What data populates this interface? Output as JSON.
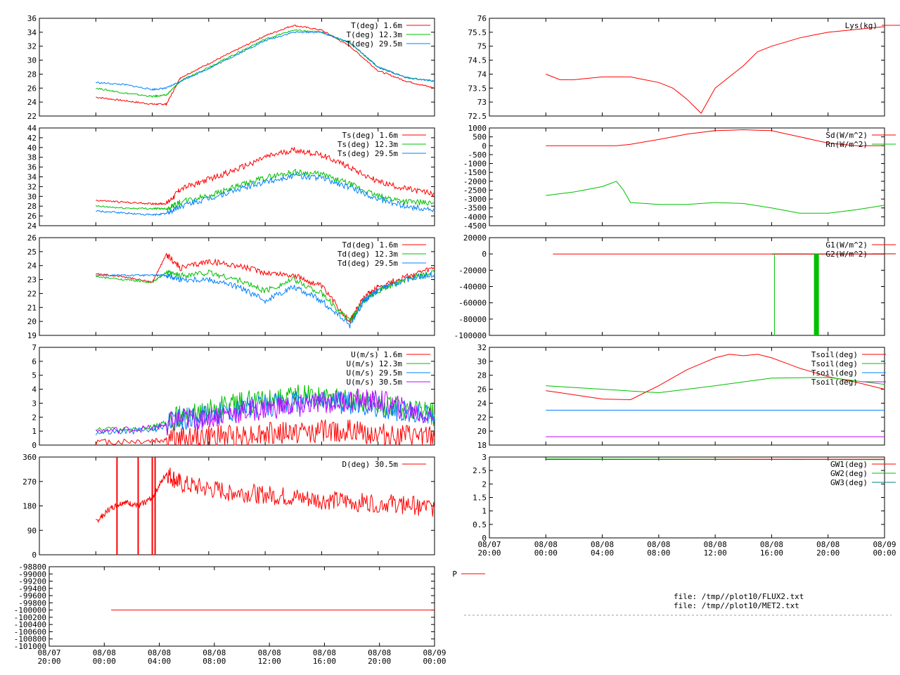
{
  "colors": {
    "red": "#ff0000",
    "green": "#00c000",
    "blue": "#0080ff",
    "purple": "#c000ff",
    "darkred": "#c00000",
    "teal": "#008080",
    "grid": "#a0a0a0",
    "frame": "#000000"
  },
  "time_ticks": [
    "08/07\n20:00",
    "08/08\n00:00",
    "08/08\n04:00",
    "08/08\n08:00",
    "08/08\n12:00",
    "08/08\n16:00",
    "08/08\n20:00",
    "08/09\n00:00"
  ],
  "file_lines": [
    "file: /tmp//plot10/FLUX2.txt",
    "file: /tmp//plot10/MET2.txt"
  ],
  "chart_data": [
    {
      "id": "T",
      "type": "line",
      "ylim": [
        22,
        36
      ],
      "yticks": [
        "22",
        "24",
        "26",
        "28",
        "30",
        "32",
        "34",
        "36"
      ],
      "xlim_hours": [
        0,
        28
      ],
      "series": [
        {
          "name": "T(deg)  1.6m",
          "color": "red",
          "x": [
            4,
            6,
            8,
            9,
            10,
            12,
            14,
            16,
            18,
            20,
            22,
            24,
            26,
            28
          ],
          "y": [
            24.7,
            24.2,
            23.7,
            23.7,
            27.5,
            29.5,
            31.5,
            33.5,
            35,
            34.3,
            32,
            28.5,
            27,
            26
          ]
        },
        {
          "name": "T(deg) 12.3m",
          "color": "green",
          "x": [
            4,
            6,
            8,
            9,
            10,
            12,
            14,
            16,
            18,
            20,
            22,
            24,
            26,
            28
          ],
          "y": [
            26.0,
            25.3,
            24.8,
            25.0,
            27,
            29,
            31,
            33,
            34.3,
            34,
            32.5,
            29,
            27.5,
            27
          ]
        },
        {
          "name": "T(deg) 29.5m",
          "color": "blue",
          "x": [
            4,
            6,
            8,
            9,
            10,
            12,
            14,
            16,
            18,
            20,
            22,
            24,
            26,
            28
          ],
          "y": [
            26.8,
            26.5,
            25.8,
            26.0,
            27,
            28.8,
            30.8,
            32.8,
            34,
            34,
            32.5,
            29,
            27.5,
            27
          ]
        }
      ]
    },
    {
      "id": "Ts",
      "type": "line",
      "ylim": [
        24,
        44
      ],
      "yticks": [
        "24",
        "26",
        "28",
        "30",
        "32",
        "34",
        "36",
        "38",
        "40",
        "42",
        "44"
      ],
      "xlim_hours": [
        0,
        28
      ],
      "series": [
        {
          "name": "Ts(deg)  1.6m",
          "color": "red",
          "x": [
            4,
            6,
            8,
            9,
            10,
            12,
            14,
            16,
            18,
            20,
            22,
            24,
            26,
            28
          ],
          "y": [
            29.2,
            28.8,
            28.5,
            28.5,
            31.5,
            33.5,
            35.5,
            38,
            39.5,
            38.5,
            36,
            33,
            31.5,
            30.5
          ]
        },
        {
          "name": "Ts(deg) 12.3m",
          "color": "green",
          "x": [
            4,
            6,
            8,
            9,
            10,
            12,
            14,
            16,
            18,
            20,
            22,
            24,
            26,
            28
          ],
          "y": [
            28.0,
            27.6,
            27.5,
            27.5,
            28.8,
            30.2,
            32,
            33.8,
            35,
            34.5,
            32.5,
            30,
            29,
            28.5
          ]
        },
        {
          "name": "Ts(deg) 29.5m",
          "color": "blue",
          "x": [
            4,
            6,
            8,
            9,
            10,
            12,
            14,
            16,
            18,
            20,
            22,
            24,
            26,
            28
          ],
          "y": [
            27.0,
            26.6,
            26.2,
            26.5,
            28.0,
            29.5,
            31.3,
            33.0,
            34.2,
            33.8,
            31.8,
            29.5,
            28,
            27.2
          ]
        }
      ]
    },
    {
      "id": "Td",
      "type": "line",
      "ylim": [
        19,
        26
      ],
      "yticks": [
        "19",
        "20",
        "21",
        "22",
        "23",
        "24",
        "25",
        "26"
      ],
      "xlim_hours": [
        0,
        28
      ],
      "series": [
        {
          "name": "Td(deg)  1.6m",
          "color": "red",
          "x": [
            4,
            6,
            8,
            9,
            10,
            12,
            14,
            16,
            18,
            20,
            22,
            23,
            24,
            26,
            28
          ],
          "y": [
            23.4,
            23.2,
            22.8,
            24.8,
            23.8,
            24.3,
            24.0,
            23.5,
            23.3,
            22.5,
            20.0,
            21.8,
            22.5,
            23.2,
            23.8
          ]
        },
        {
          "name": "Td(deg) 12.3m",
          "color": "green",
          "x": [
            4,
            6,
            8,
            9,
            10,
            12,
            14,
            16,
            18,
            20,
            22,
            23,
            24,
            26,
            28
          ],
          "y": [
            23.2,
            23.0,
            22.8,
            23.5,
            23.3,
            23.5,
            23.0,
            22.2,
            23.0,
            22.0,
            20.0,
            21.5,
            22.2,
            23.0,
            23.5
          ]
        },
        {
          "name": "Td(deg) 29.5m",
          "color": "blue",
          "x": [
            4,
            6,
            8,
            9,
            10,
            12,
            14,
            16,
            18,
            20,
            22,
            23,
            24,
            26,
            28
          ],
          "y": [
            23.3,
            23.3,
            23.3,
            23.3,
            23.0,
            23.0,
            22.5,
            21.5,
            22.5,
            21.5,
            19.7,
            21.5,
            22.2,
            23.0,
            23.4
          ]
        }
      ]
    },
    {
      "id": "U",
      "type": "line",
      "ylim": [
        0,
        7
      ],
      "yticks": [
        "0",
        "1",
        "2",
        "3",
        "4",
        "5",
        "6",
        "7"
      ],
      "xlim_hours": [
        0,
        28
      ],
      "series": [
        {
          "name": "U(m/s)  1.6m",
          "color": "red",
          "x": [
            4,
            8,
            10,
            12,
            14,
            16,
            18,
            20,
            22,
            24,
            26,
            28
          ],
          "y": [
            0.2,
            0.3,
            0.5,
            0.6,
            0.7,
            0.8,
            0.9,
            1.0,
            1.0,
            0.8,
            0.6,
            0.5
          ]
        },
        {
          "name": "U(m/s) 12.3m",
          "color": "green",
          "x": [
            4,
            8,
            10,
            12,
            14,
            16,
            18,
            20,
            22,
            24,
            26,
            28
          ],
          "y": [
            1.0,
            1.2,
            2.0,
            2.5,
            3.0,
            3.2,
            3.5,
            3.5,
            3.2,
            3.0,
            2.5,
            2.2
          ]
        },
        {
          "name": "U(m/s) 29.5m",
          "color": "blue",
          "x": [
            4,
            8,
            10,
            12,
            14,
            16,
            18,
            20,
            22,
            24,
            26,
            28
          ],
          "y": [
            0.9,
            1.1,
            1.8,
            2.2,
            2.6,
            2.8,
            3.0,
            3.2,
            3.0,
            2.8,
            2.4,
            2.0
          ]
        },
        {
          "name": "U(m/s) 30.5m",
          "color": "purple",
          "x": [
            4,
            8,
            10,
            12,
            14,
            16,
            18,
            20,
            22,
            24,
            26,
            28
          ],
          "y": [
            1.0,
            1.2,
            1.8,
            2.0,
            2.3,
            2.6,
            2.8,
            3.0,
            3.2,
            3.2,
            2.5,
            2.0
          ]
        }
      ]
    },
    {
      "id": "D",
      "type": "line",
      "ylim": [
        0,
        360
      ],
      "yticks": [
        "0",
        "90",
        "180",
        "270",
        "360"
      ],
      "xlim_hours": [
        0,
        28
      ],
      "series": [
        {
          "name": "D(deg)  30.5m",
          "color": "red",
          "x": [
            4,
            5,
            6,
            7,
            8,
            9,
            10,
            12,
            14,
            16,
            18,
            20,
            22,
            24,
            26,
            28
          ],
          "y": [
            120,
            170,
            195,
            180,
            210,
            300,
            260,
            240,
            230,
            220,
            210,
            200,
            195,
            190,
            185,
            170
          ]
        }
      ]
    },
    {
      "id": "P",
      "type": "line",
      "ylim": [
        -101000,
        -98800
      ],
      "yticks": [
        "-101000",
        "-100800",
        "-100600",
        "-100400",
        "-100200",
        "-100000",
        "-99800",
        "-99600",
        "-99400",
        "-99200",
        "-99000",
        "-98800"
      ],
      "xlim_hours": [
        0,
        28
      ],
      "series": [
        {
          "name": "P",
          "color": "red",
          "x": [
            4.5,
            28
          ],
          "y": [
            -100000,
            -100000
          ]
        }
      ]
    },
    {
      "id": "Lys",
      "type": "line",
      "ylim": [
        72.5,
        76
      ],
      "yticks": [
        "72.5",
        "73",
        "73.5",
        "74",
        "74.5",
        "75",
        "75.5",
        "76"
      ],
      "xlim_hours": [
        0,
        28
      ],
      "series": [
        {
          "name": "Lys(kg)",
          "color": "red",
          "x": [
            4,
            5,
            6,
            8,
            10,
            12,
            13,
            14,
            15,
            16,
            18,
            19,
            20,
            22,
            24,
            26,
            28
          ],
          "y": [
            74.0,
            73.8,
            73.8,
            73.9,
            73.9,
            73.7,
            73.5,
            73.1,
            72.6,
            73.5,
            74.3,
            74.8,
            75.0,
            75.3,
            75.5,
            75.6,
            75.7
          ]
        }
      ]
    },
    {
      "id": "Sd",
      "type": "line",
      "ylim": [
        -4500,
        1000
      ],
      "yticks": [
        "-4500",
        "-4000",
        "-3500",
        "-3000",
        "-2500",
        "-2000",
        "-1500",
        "-1000",
        "-500",
        "0",
        "500",
        "1000"
      ],
      "xlim_hours": [
        0,
        28
      ],
      "series": [
        {
          "name": "Sd(W/m^2)",
          "color": "red",
          "x": [
            4,
            6,
            8,
            9,
            10,
            12,
            14,
            16,
            18,
            20,
            22,
            24,
            26,
            28
          ],
          "y": [
            0,
            0,
            0,
            0,
            80,
            350,
            650,
            850,
            900,
            850,
            500,
            150,
            0,
            0
          ]
        },
        {
          "name": "Rn(W/m^2)",
          "color": "green",
          "x": [
            4,
            6,
            8,
            9,
            9.5,
            10,
            12,
            14,
            16,
            18,
            20,
            22,
            24,
            26,
            28
          ],
          "y": [
            -2800,
            -2600,
            -2300,
            -2000,
            -2500,
            -3200,
            -3300,
            -3300,
            -3200,
            -3250,
            -3500,
            -3800,
            -3800,
            -3600,
            -3350
          ]
        }
      ]
    },
    {
      "id": "G",
      "type": "line",
      "ylim": [
        -100000,
        20000
      ],
      "yticks": [
        "-100000",
        "-80000",
        "-60000",
        "-40000",
        "-20000",
        "0",
        "20000"
      ],
      "xlim_hours": [
        0,
        28
      ],
      "series": [
        {
          "name": "G1(W/m^2)",
          "color": "red",
          "x": [
            4.5,
            28
          ],
          "y": [
            0,
            0
          ]
        },
        {
          "name": "G2(W/m^2)",
          "color": "darkred",
          "x": [
            20,
            28
          ],
          "y": [
            0,
            0
          ]
        }
      ]
    },
    {
      "id": "Tsoil",
      "type": "line",
      "ylim": [
        18,
        32
      ],
      "yticks": [
        "18",
        "20",
        "22",
        "24",
        "26",
        "28",
        "30",
        "32"
      ],
      "xlim_hours": [
        0,
        28
      ],
      "series": [
        {
          "name": "Tsoil(deg)",
          "color": "red",
          "x": [
            4,
            6,
            8,
            10,
            12,
            14,
            16,
            17,
            18,
            19,
            20,
            22,
            24,
            26,
            28
          ],
          "y": [
            25.8,
            25.2,
            24.6,
            24.5,
            26.5,
            28.8,
            30.5,
            31.0,
            30.8,
            31.0,
            30.5,
            29.0,
            27.8,
            27.0,
            26.0
          ]
        },
        {
          "name": "Tsoil(deg)",
          "color": "green",
          "x": [
            4,
            8,
            12,
            16,
            20,
            24,
            28
          ],
          "y": [
            26.5,
            26.0,
            25.5,
            26.5,
            27.6,
            27.7,
            26.7
          ]
        },
        {
          "name": "Tsoil(deg)",
          "color": "blue",
          "x": [
            4,
            28
          ],
          "y": [
            23.0,
            23.0
          ]
        },
        {
          "name": "Tsoil(deg)",
          "color": "purple",
          "x": [
            4,
            28
          ],
          "y": [
            19.2,
            19.2
          ]
        }
      ]
    },
    {
      "id": "GW",
      "type": "line",
      "ylim": [
        0,
        3
      ],
      "yticks": [
        "0",
        "0.5",
        "1",
        "1.5",
        "2",
        "2.5",
        "3"
      ],
      "xlim_hours": [
        0,
        28
      ],
      "series": [
        {
          "name": "GW1(deg)",
          "color": "red",
          "x": [
            4,
            28
          ],
          "y": [
            2.92,
            2.92
          ]
        },
        {
          "name": "GW2(deg)",
          "color": "green",
          "x": [
            4,
            28
          ],
          "y": [
            2.93,
            2.9
          ]
        },
        {
          "name": "GW3(deg)",
          "color": "teal",
          "x": [
            4,
            28
          ],
          "y": [
            2.91,
            2.91
          ]
        }
      ]
    }
  ]
}
